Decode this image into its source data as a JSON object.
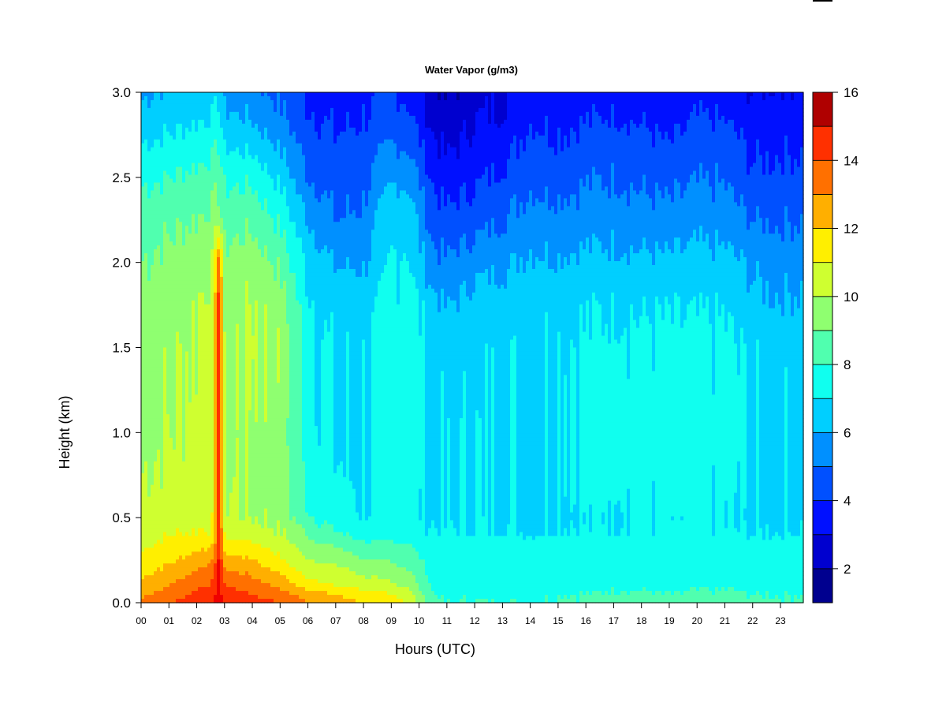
{
  "chart_data": {
    "type": "heatmap",
    "title": "Water Vapor (g/m3)",
    "xlabel": "Hours (UTC)",
    "ylabel": "Height (km)",
    "x_tick_labels": [
      "00",
      "01",
      "02",
      "03",
      "04",
      "05",
      "06",
      "07",
      "08",
      "09",
      "10",
      "11",
      "12",
      "13",
      "14",
      "15",
      "16",
      "17",
      "18",
      "19",
      "20",
      "21",
      "22",
      "23"
    ],
    "xlim": [
      0,
      24
    ],
    "y_tick_labels": [
      "0.0",
      "0.5",
      "1.0",
      "1.5",
      "2.0",
      "2.5",
      "3.0"
    ],
    "y_ticks": [
      0,
      0.5,
      1.0,
      1.5,
      2.0,
      2.5,
      3.0
    ],
    "ylim": [
      0,
      3
    ],
    "colorbar": {
      "levels": [
        1,
        2,
        3,
        4,
        5,
        6,
        7,
        8,
        9,
        10,
        11,
        12,
        13,
        14,
        15,
        16
      ],
      "tick_labels": [
        "2",
        "4",
        "6",
        "8",
        "10",
        "12",
        "14",
        "16"
      ],
      "tick_values": [
        2,
        4,
        6,
        8,
        10,
        12,
        14,
        16
      ],
      "colors": [
        "#00008F",
        "#0000CF",
        "#0010FF",
        "#0050FF",
        "#0090FF",
        "#00CFFF",
        "#10FFEF",
        "#50FFAF",
        "#8FFF70",
        "#CFFF30",
        "#FFEF00",
        "#FFAF00",
        "#FF7000",
        "#FF3000",
        "#EF0000",
        "#AF0000"
      ]
    },
    "grid": false,
    "legend": "colorbar-right",
    "profile_heights_km": [
      0.0,
      0.05,
      0.1,
      0.2,
      0.3,
      0.4,
      0.5,
      0.75,
      1.0,
      1.5,
      1.75,
      2.0,
      2.25,
      2.5,
      2.75,
      3.0
    ],
    "profiles": [
      {
        "hour": 0.0,
        "values": [
          13,
          12.8,
          12.3,
          11.6,
          11,
          10.6,
          10.4,
          10.0,
          9.8,
          9.6,
          9.4,
          9.0,
          8.6,
          7.8,
          6.8,
          5.8
        ]
      },
      {
        "hour": 1.0,
        "values": [
          14,
          13.5,
          13.0,
          12.2,
          11.5,
          10.9,
          10.5,
          10.2,
          10.0,
          9.8,
          9.6,
          9.3,
          8.8,
          8.0,
          7.0,
          6.2
        ]
      },
      {
        "hour": 2.0,
        "values": [
          14.5,
          14.2,
          13.8,
          13.0,
          12.0,
          11.2,
          10.6,
          10.4,
          10.3,
          10.1,
          10.0,
          9.6,
          9.0,
          8.3,
          7.3,
          6.3
        ]
      },
      {
        "hour": 2.6,
        "values": [
          15,
          14.5,
          14.2,
          13.5,
          12.3,
          11.3,
          10.8,
          10.5,
          10.4,
          10.6,
          10.4,
          10.0,
          9.3,
          8.5,
          7.5,
          6.5
        ]
      },
      {
        "hour": 2.8,
        "values": [
          15.5,
          15.5,
          15.5,
          15.4,
          15.3,
          15.2,
          15.1,
          15.0,
          15.0,
          15.0,
          15.0,
          14.0,
          9.5,
          8.8,
          7.8,
          6.8
        ]
      },
      {
        "hour": 3.0,
        "values": [
          15,
          14.5,
          14.0,
          13.0,
          11.8,
          10.8,
          10.2,
          10.0,
          9.8,
          9.8,
          9.6,
          9.2,
          8.6,
          7.8,
          6.6,
          5.6
        ]
      },
      {
        "hour": 4.0,
        "values": [
          14.5,
          14.0,
          13.5,
          12.6,
          11.6,
          10.6,
          10.0,
          9.9,
          10.0,
          10.2,
          10.1,
          9.6,
          8.8,
          7.8,
          6.4,
          5.3
        ]
      },
      {
        "hour": 5.0,
        "values": [
          14,
          13.5,
          12.8,
          11.6,
          10.8,
          10.1,
          9.7,
          9.6,
          9.6,
          9.8,
          9.6,
          8.8,
          7.8,
          6.8,
          5.6,
          4.8
        ]
      },
      {
        "hour": 6.0,
        "values": [
          13,
          12.5,
          11.5,
          10.5,
          9.7,
          8.9,
          8.2,
          7.7,
          7.4,
          7.3,
          7.2,
          6.8,
          6.0,
          5.0,
          4.4,
          3.8
        ]
      },
      {
        "hour": 7.0,
        "values": [
          12.5,
          12.0,
          11.0,
          10.2,
          9.3,
          8.2,
          7.4,
          7.1,
          6.9,
          6.9,
          6.6,
          5.9,
          5.0,
          4.5,
          4.0,
          3.5
        ]
      },
      {
        "hour": 8.0,
        "values": [
          12,
          11.5,
          10.6,
          9.6,
          8.6,
          7.6,
          7.1,
          6.9,
          6.9,
          6.9,
          6.6,
          5.9,
          5.2,
          4.7,
          4.2,
          3.7
        ]
      },
      {
        "hour": 9.0,
        "values": [
          11.5,
          11.0,
          10.2,
          9.3,
          8.5,
          7.6,
          7.3,
          7.4,
          7.3,
          7.3,
          7.2,
          7.0,
          6.8,
          5.8,
          4.8,
          4.0
        ]
      },
      {
        "hour": 9.6,
        "values": [
          11,
          10.5,
          9.8,
          9.0,
          8.4,
          7.6,
          7.3,
          7.5,
          7.6,
          7.6,
          7.4,
          7.2,
          6.8,
          5.8,
          4.6,
          3.8
        ]
      },
      {
        "hour": 10.5,
        "values": [
          8.2,
          8.0,
          7.8,
          7.6,
          7.3,
          7.1,
          6.9,
          6.8,
          6.8,
          6.8,
          6.4,
          5.3,
          4.6,
          3.8,
          3.0,
          2.4
        ]
      },
      {
        "hour": 11.0,
        "values": [
          8.0,
          7.9,
          7.7,
          7.5,
          7.3,
          7.1,
          6.9,
          6.8,
          6.8,
          6.6,
          5.9,
          5.1,
          4.3,
          3.4,
          2.6,
          1.8
        ]
      },
      {
        "hour": 12.0,
        "values": [
          8.0,
          7.9,
          7.7,
          7.5,
          7.3,
          7.1,
          6.9,
          6.9,
          6.9,
          6.8,
          6.5,
          5.6,
          4.6,
          3.8,
          3.2,
          2.6
        ]
      },
      {
        "hour": 13.0,
        "values": [
          8.0,
          7.9,
          7.7,
          7.5,
          7.3,
          7.1,
          6.9,
          6.9,
          6.9,
          6.8,
          6.6,
          5.8,
          5.0,
          4.2,
          3.4,
          2.9
        ]
      },
      {
        "hour": 14.0,
        "values": [
          8.0,
          7.9,
          7.7,
          7.5,
          7.3,
          7.0,
          6.8,
          6.9,
          6.9,
          6.9,
          6.8,
          6.2,
          5.5,
          4.8,
          4.2,
          3.5
        ]
      },
      {
        "hour": 15.0,
        "values": [
          8.1,
          8.0,
          7.8,
          7.6,
          7.3,
          7.1,
          7.0,
          7.1,
          7.1,
          7.0,
          6.8,
          6.1,
          5.4,
          4.6,
          4.0,
          3.4
        ]
      },
      {
        "hour": 16.0,
        "values": [
          8.1,
          8.0,
          7.8,
          7.6,
          7.3,
          7.1,
          7.0,
          7.2,
          7.2,
          7.1,
          6.9,
          6.3,
          5.5,
          4.9,
          4.2,
          3.5
        ]
      },
      {
        "hour": 17.0,
        "values": [
          8.2,
          8.1,
          7.9,
          7.7,
          7.4,
          7.2,
          7.2,
          7.4,
          7.4,
          7.3,
          7.0,
          6.3,
          5.6,
          5.0,
          4.4,
          3.5
        ]
      },
      {
        "hour": 18.0,
        "values": [
          8.2,
          8.1,
          7.9,
          7.7,
          7.4,
          7.2,
          7.1,
          7.3,
          7.3,
          7.2,
          6.9,
          6.2,
          5.4,
          4.8,
          4.2,
          3.4
        ]
      },
      {
        "hour": 19.0,
        "values": [
          8.1,
          8.0,
          7.8,
          7.6,
          7.3,
          7.1,
          7.0,
          7.2,
          7.3,
          7.2,
          6.9,
          6.2,
          5.3,
          4.6,
          3.8,
          3.0
        ]
      },
      {
        "hour": 20.0,
        "values": [
          8.2,
          8.1,
          7.9,
          7.7,
          7.4,
          7.1,
          7.1,
          7.3,
          7.3,
          7.2,
          6.9,
          6.3,
          5.6,
          4.9,
          4.3,
          3.6
        ]
      },
      {
        "hour": 21.0,
        "values": [
          8.2,
          8.1,
          7.9,
          7.7,
          7.4,
          7.1,
          7.0,
          7.2,
          7.3,
          7.2,
          6.9,
          6.3,
          5.5,
          4.9,
          4.3,
          3.4
        ]
      },
      {
        "hour": 22.0,
        "values": [
          8.1,
          8.0,
          7.8,
          7.5,
          7.3,
          7.0,
          6.8,
          6.8,
          6.9,
          6.8,
          6.3,
          5.8,
          5.0,
          4.2,
          3.6,
          3.0
        ]
      },
      {
        "hour": 23.0,
        "values": [
          8.1,
          8.0,
          7.8,
          7.6,
          7.3,
          7.0,
          6.8,
          6.8,
          6.8,
          6.7,
          6.1,
          5.6,
          4.9,
          4.3,
          3.7,
          3.2
        ]
      },
      {
        "hour": 24.0,
        "values": [
          8.1,
          8.0,
          7.8,
          7.6,
          7.4,
          7.1,
          6.9,
          6.8,
          6.8,
          6.7,
          6.2,
          5.7,
          5.0,
          4.4,
          3.7,
          3.2
        ]
      }
    ]
  }
}
